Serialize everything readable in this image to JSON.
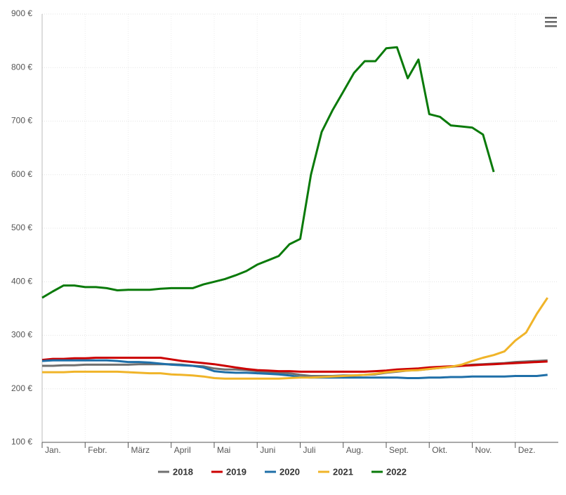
{
  "chart_data": {
    "type": "line",
    "categories": [
      "Jan.",
      null,
      null,
      null,
      "Febr.",
      null,
      null,
      null,
      "März",
      null,
      null,
      null,
      "April",
      null,
      null,
      null,
      "Mai",
      null,
      null,
      null,
      "Juni",
      null,
      null,
      null,
      "Juli",
      null,
      null,
      null,
      "Aug.",
      null,
      null,
      null,
      "Sept.",
      null,
      null,
      null,
      "Okt.",
      null,
      null,
      null,
      "Nov.",
      null,
      null,
      null,
      "Dez.",
      null,
      null,
      null
    ],
    "ylim": [
      100,
      900
    ],
    "yticks": [
      {
        "value": 100,
        "label": "100 €"
      },
      {
        "value": 200,
        "label": "200 €"
      },
      {
        "value": 300,
        "label": "300 €"
      },
      {
        "value": 400,
        "label": "400 €"
      },
      {
        "value": 500,
        "label": "500 €"
      },
      {
        "value": 600,
        "label": "600 €"
      },
      {
        "value": 700,
        "label": "700 €"
      },
      {
        "value": 800,
        "label": "800 €"
      },
      {
        "value": 900,
        "label": "900 €"
      }
    ],
    "grid": true,
    "legend": "bottom",
    "series": [
      {
        "name": "2018",
        "color": "#707070",
        "values": [
          243,
          243,
          244,
          244,
          245,
          245,
          245,
          245,
          245,
          246,
          246,
          246,
          246,
          245,
          243,
          242,
          238,
          236,
          236,
          235,
          233,
          231,
          230,
          229,
          226,
          224,
          224,
          224,
          225,
          225,
          226,
          227,
          230,
          232,
          234,
          235,
          237,
          239,
          241,
          243,
          245,
          246,
          247,
          248,
          250,
          251,
          252,
          253
        ]
      },
      {
        "name": "2019",
        "color": "#cc0000",
        "values": [
          254,
          256,
          256,
          257,
          257,
          258,
          258,
          258,
          258,
          258,
          258,
          258,
          255,
          252,
          250,
          248,
          246,
          243,
          240,
          237,
          235,
          234,
          233,
          233,
          232,
          232,
          232,
          232,
          232,
          232,
          232,
          233,
          234,
          236,
          237,
          238,
          240,
          241,
          242,
          243,
          244,
          245,
          246,
          247,
          248,
          249,
          250,
          251
        ]
      },
      {
        "name": "2020",
        "color": "#1f6fa8",
        "values": [
          252,
          253,
          253,
          253,
          253,
          253,
          253,
          252,
          250,
          250,
          249,
          247,
          245,
          244,
          243,
          240,
          233,
          231,
          230,
          230,
          229,
          228,
          227,
          225,
          222,
          221,
          221,
          221,
          221,
          221,
          221,
          221,
          221,
          221,
          220,
          220,
          221,
          221,
          222,
          222,
          223,
          223,
          223,
          223,
          224,
          224,
          224,
          226
        ]
      },
      {
        "name": "2021",
        "color": "#f0b429",
        "values": [
          231,
          231,
          231,
          232,
          232,
          232,
          232,
          232,
          231,
          230,
          229,
          229,
          227,
          226,
          225,
          223,
          220,
          219,
          219,
          219,
          219,
          219,
          219,
          220,
          221,
          221,
          222,
          223,
          224,
          225,
          226,
          228,
          231,
          233,
          234,
          235,
          237,
          239,
          241,
          245,
          252,
          258,
          263,
          270,
          290,
          305,
          340,
          370
        ]
      },
      {
        "name": "2022",
        "color": "#0a7a0a",
        "values": [
          370,
          382,
          393,
          393,
          390,
          390,
          388,
          384,
          385,
          385,
          385,
          387,
          388,
          388,
          388,
          395,
          400,
          405,
          412,
          420,
          432,
          440,
          448,
          470,
          480,
          600,
          680,
          720,
          755,
          790,
          812,
          812,
          836,
          838,
          780,
          815,
          713,
          708,
          692,
          690,
          688,
          675,
          605,
          null,
          null,
          null,
          null,
          null
        ]
      }
    ]
  }
}
